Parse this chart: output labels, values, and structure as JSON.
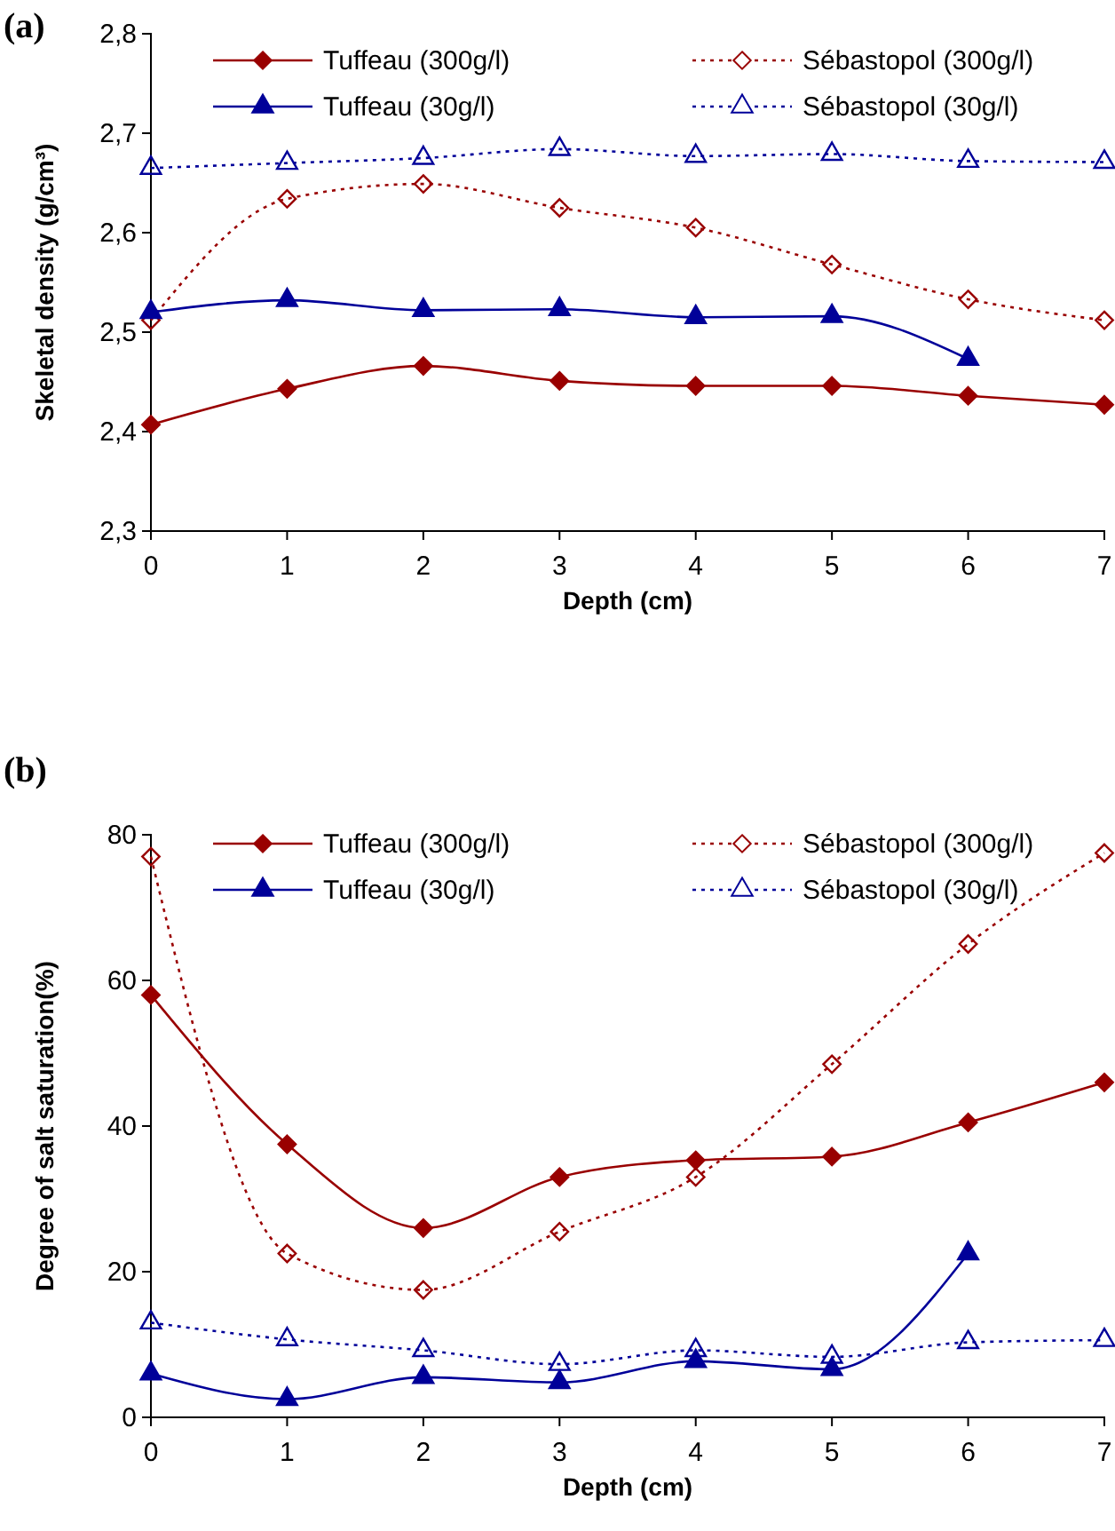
{
  "chart_data": [
    {
      "type": "line",
      "title": "(a)",
      "xlabel": "Depth (cm)",
      "ylabel": "Skeletal density (g/cm³)",
      "x": [
        0,
        1,
        2,
        3,
        4,
        5,
        6,
        7
      ],
      "xlim": [
        0,
        7
      ],
      "xticks": [
        0,
        1,
        2,
        3,
        4,
        5,
        6,
        7
      ],
      "ylim": [
        2.3,
        2.8
      ],
      "yticks": [
        {
          "value": 2.3,
          "label": "2,3"
        },
        {
          "value": 2.4,
          "label": "2,4"
        },
        {
          "value": 2.5,
          "label": "2,5"
        },
        {
          "value": 2.6,
          "label": "2,6"
        },
        {
          "value": 2.7,
          "label": "2,7"
        },
        {
          "value": 2.8,
          "label": "2,8"
        }
      ],
      "legend": "top",
      "grid": false,
      "series": [
        {
          "name": "Tuffeau (300g/l)",
          "color": "#990000",
          "marker": "diamond",
          "line_style": "solid",
          "values": [
            2.407,
            2.443,
            2.466,
            2.451,
            2.446,
            2.446,
            2.436,
            2.427
          ]
        },
        {
          "name": "Sébastopol (300g/l)",
          "color": "#990000",
          "marker": "diamond",
          "line_style": "dotted",
          "values": [
            2.512,
            2.634,
            2.649,
            2.625,
            2.605,
            2.568,
            2.533,
            2.512
          ]
        },
        {
          "name": "Tuffeau (30g/l)",
          "color": "#000099",
          "marker": "triangle",
          "line_style": "solid",
          "values": [
            2.52,
            2.532,
            2.522,
            2.523,
            2.515,
            2.516,
            2.473,
            null
          ]
        },
        {
          "name": "Sébastopol (30g/l)",
          "color": "#000099",
          "marker": "triangle",
          "line_style": "dotted",
          "values": [
            2.665,
            2.67,
            2.675,
            2.684,
            2.677,
            2.679,
            2.672,
            2.671
          ]
        }
      ]
    },
    {
      "type": "line",
      "title": "(b)",
      "xlabel": "Depth (cm)",
      "ylabel": "Degree of salt saturation(%)",
      "x": [
        0,
        1,
        2,
        3,
        4,
        5,
        6,
        7
      ],
      "xlim": [
        0,
        7
      ],
      "xticks": [
        0,
        1,
        2,
        3,
        4,
        5,
        6,
        7
      ],
      "ylim": [
        0,
        80
      ],
      "yticks": [
        0,
        20,
        40,
        60,
        80
      ],
      "legend": "top",
      "grid": false,
      "series": [
        {
          "name": "Tuffeau (300g/l)",
          "color": "#990000",
          "marker": "diamond",
          "line_style": "solid",
          "values": [
            58,
            37.5,
            26,
            33,
            35.3,
            35.8,
            40.5,
            46
          ]
        },
        {
          "name": "Sébastopol (300g/l)",
          "color": "#990000",
          "marker": "diamond",
          "line_style": "dotted",
          "values": [
            77,
            22.5,
            17.5,
            25.5,
            33,
            48.5,
            65,
            77.5
          ]
        },
        {
          "name": "Tuffeau (30g/l)",
          "color": "#000099",
          "marker": "triangle",
          "line_style": "solid",
          "values": [
            6,
            2.5,
            5.5,
            4.8,
            7.7,
            6.6,
            22.5,
            null
          ]
        },
        {
          "name": "Sébastopol (30g/l)",
          "color": "#000099",
          "marker": "triangle",
          "line_style": "dotted",
          "values": [
            13,
            10.7,
            9.2,
            7.3,
            9.2,
            8.3,
            10.3,
            10.6
          ]
        }
      ]
    }
  ]
}
